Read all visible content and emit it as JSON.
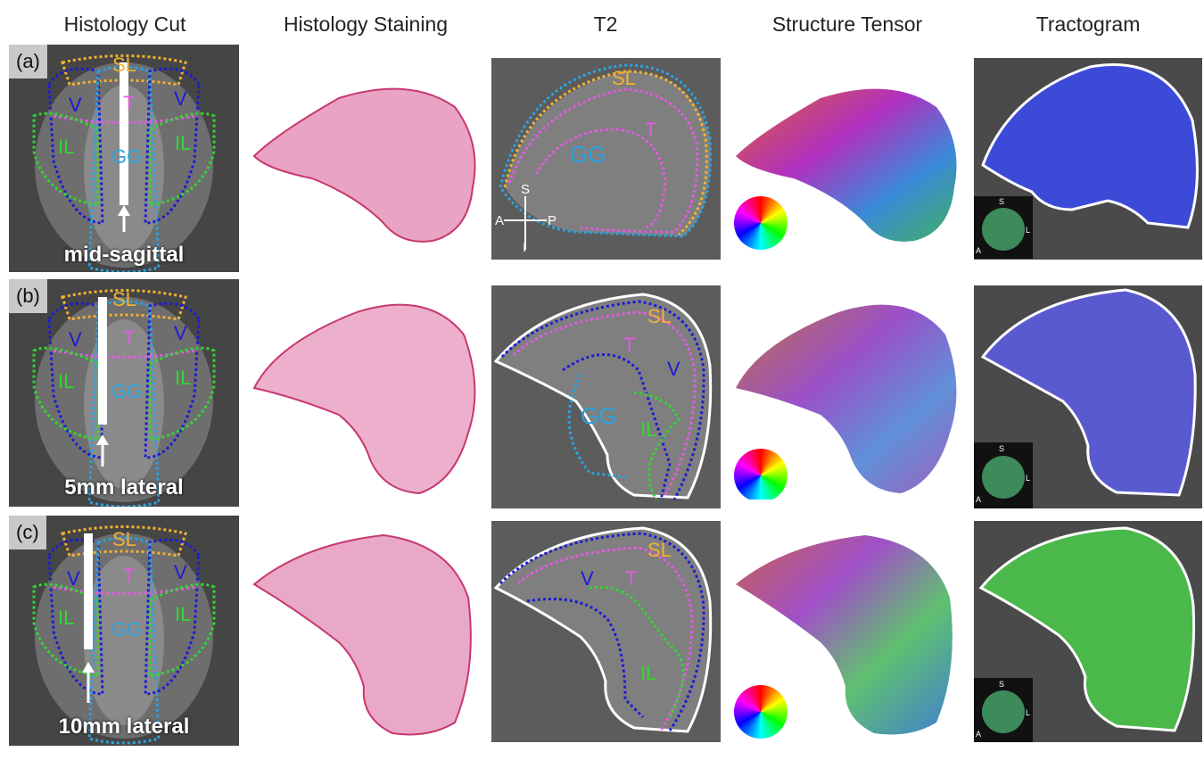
{
  "columns": [
    "Histology Cut",
    "Histology Staining",
    "T2",
    "Structure Tensor",
    "Tractogram"
  ],
  "rows": [
    {
      "tag": "(a)",
      "caption": "mid-sagittal"
    },
    {
      "tag": "(b)",
      "caption": "5mm lateral"
    },
    {
      "tag": "(c)",
      "caption": "10mm lateral"
    }
  ],
  "regions": {
    "SL": "SL",
    "T": "T",
    "V": "V",
    "GG": "GG",
    "IL": "IL"
  },
  "orientation": {
    "S": "S",
    "I": "I",
    "A": "A",
    "P": "P",
    "L": "L"
  },
  "colors": {
    "SL": "#f2b233",
    "T": "#e35be3",
    "V": "#1b1bd6",
    "GG": "#2ba3e0",
    "IL": "#33d633",
    "outline": "#ffffff",
    "stain": "#e48fb8",
    "stain_edge": "#c8386f"
  }
}
